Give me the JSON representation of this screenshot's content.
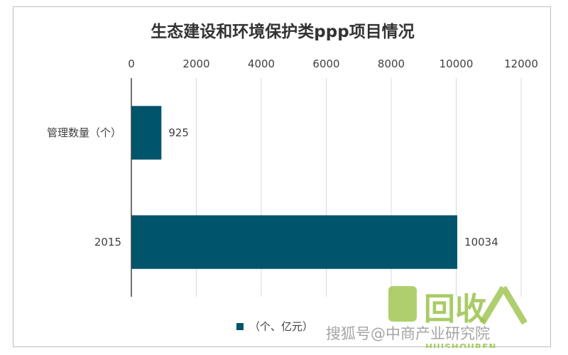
{
  "chart_data": {
    "type": "bar",
    "orientation": "horizontal",
    "title": "生态建设和环境保护类ppp项目情况",
    "categories": [
      "管理数量（个）",
      "2015"
    ],
    "series": [
      {
        "name": "（个、亿元）",
        "values": [
          925,
          10034
        ],
        "color": "#00546b"
      }
    ],
    "data_labels": [
      "925",
      "10034"
    ],
    "xlim": [
      0,
      12000
    ],
    "x_ticks": [
      0,
      2000,
      4000,
      6000,
      8000,
      10000,
      12000
    ],
    "x_tick_labels": [
      "0",
      "2000",
      "4000",
      "6000",
      "8000",
      "10000",
      "12000"
    ],
    "x_axis_position": "top",
    "grid": true,
    "legend_position": "bottom"
  },
  "watermark": {
    "text": "搜狐号@中商产业研究院",
    "logo_text": "回收",
    "logo_sub": "HUISHOUREN",
    "logo_color": "#9bc34b"
  }
}
